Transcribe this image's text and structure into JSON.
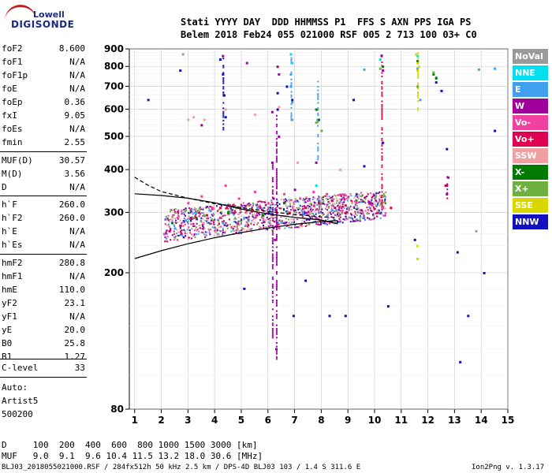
{
  "logo": {
    "line1": "Lowell",
    "line2": "DIGISONDE"
  },
  "header": {
    "line1": "Stati YYYY DAY  DDD HHMMSS P1  FFS S AXN PPS IGA PS",
    "line2": "Belem 2018 Feb24 055 021000 RSF 005 2 713 100 03+ C0"
  },
  "params": [
    {
      "name": "foF2",
      "value": "8.600"
    },
    {
      "name": "foF1",
      "value": "N/A"
    },
    {
      "name": "foF1p",
      "value": "N/A"
    },
    {
      "name": "foE",
      "value": "N/A"
    },
    {
      "name": "foEp",
      "value": "0.36"
    },
    {
      "name": "fxI",
      "value": "9.05"
    },
    {
      "name": "foEs",
      "value": "N/A"
    },
    {
      "name": "fmin",
      "value": "2.55"
    },
    {
      "name": "MUF(D)",
      "value": "30.57"
    },
    {
      "name": "M(D)",
      "value": "3.56"
    },
    {
      "name": "D",
      "value": "N/A"
    },
    {
      "name": "h`F",
      "value": "260.0"
    },
    {
      "name": "h`F2",
      "value": "260.0"
    },
    {
      "name": "h`E",
      "value": "N/A"
    },
    {
      "name": "h`Es",
      "value": "N/A"
    },
    {
      "name": "hmF2",
      "value": "280.8"
    },
    {
      "name": "hmF1",
      "value": "N/A"
    },
    {
      "name": "hmE",
      "value": "110.0"
    },
    {
      "name": "yF2",
      "value": "23.1"
    },
    {
      "name": "yF1",
      "value": "N/A"
    },
    {
      "name": "yE",
      "value": "20.0"
    },
    {
      "name": "B0",
      "value": "25.8"
    },
    {
      "name": "B1",
      "value": "1.27"
    },
    {
      "name": "C-level",
      "value": "33"
    }
  ],
  "auto": {
    "l1": "Auto:",
    "l2": "Artist5",
    "l3": "500200"
  },
  "legend": [
    {
      "label": "NoVal",
      "color": "#9a9a9a"
    },
    {
      "label": "NNE",
      "color": "#00e0f0"
    },
    {
      "label": "E",
      "color": "#40a0f0"
    },
    {
      "label": "W",
      "color": "#a0009a"
    },
    {
      "label": "Vo-",
      "color": "#f040a0"
    },
    {
      "label": "Vo+",
      "color": "#e00050"
    },
    {
      "label": "SSW",
      "color": "#f0a0a0"
    },
    {
      "label": "X-",
      "color": "#007a00"
    },
    {
      "label": "X+",
      "color": "#70b040"
    },
    {
      "label": "SSE",
      "color": "#d8d800"
    },
    {
      "label": "NNW",
      "color": "#1010c0"
    }
  ],
  "footer": {
    "d_row": "D     100  200  400  600  800 1000 1500 3000 [km]",
    "muf_row": "MUF   9.0  9.1  9.6 10.4 11.5 13.2 18.0 30.6 [MHz]",
    "file": "BLJ03_2018055021000.RSF / 284fx512h 50 kHz 2.5 km / DPS-4D BLJ03 103 / 1.4 S 311.6 E",
    "version": "Ion2Png v. 1.3.17"
  },
  "chart_data": {
    "type": "scatter",
    "title": "",
    "xlabel": "",
    "ylabel": "",
    "xlim": [
      0.8,
      15
    ],
    "ylim": [
      80,
      900
    ],
    "x_ticks": [
      "1",
      "2",
      "3",
      "4",
      "5",
      "6",
      "7",
      "8",
      "9",
      "10",
      "11",
      "12",
      "13",
      "14",
      "15"
    ],
    "y_ticks": [
      "80",
      "200",
      "300",
      "400",
      "500",
      "600",
      "700",
      "800",
      "900"
    ],
    "y_scale": "log",
    "grid": "on",
    "legend_position": "right",
    "series": [
      {
        "name": "NoVal",
        "color": "#9a9a9a",
        "points": [
          [
            2.8,
            870
          ],
          [
            4.1,
            260
          ],
          [
            6.9,
            560
          ],
          [
            9.4,
            300
          ],
          [
            12.3,
            745
          ],
          [
            13.8,
            265
          ]
        ]
      },
      {
        "name": "NNE",
        "color": "#00e0f0",
        "points": [
          [
            6.85,
            870
          ],
          [
            6.9,
            820
          ],
          [
            7.8,
            360
          ],
          [
            10.2,
            840
          ],
          [
            11.6,
            860
          ]
        ]
      },
      {
        "name": "E",
        "color": "#40a0f0",
        "points": [
          [
            2.5,
            270
          ],
          [
            2.9,
            285
          ],
          [
            3.3,
            300
          ],
          [
            3.8,
            305
          ],
          [
            4.3,
            280
          ],
          [
            4.6,
            300
          ],
          [
            5.1,
            290
          ],
          [
            5.6,
            310
          ],
          [
            6.1,
            300
          ],
          [
            6.85,
            760
          ],
          [
            6.85,
            700
          ],
          [
            6.9,
            630
          ],
          [
            7.3,
            300
          ],
          [
            7.85,
            560
          ],
          [
            7.9,
            300
          ],
          [
            8.4,
            305
          ],
          [
            9.1,
            290
          ],
          [
            9.6,
            785
          ],
          [
            11.6,
            790
          ],
          [
            11.7,
            640
          ],
          [
            13.9,
            785
          ],
          [
            14.5,
            790
          ]
        ]
      },
      {
        "name": "W",
        "color": "#a0009a",
        "points": [
          [
            3.5,
            540
          ],
          [
            4.3,
            860
          ],
          [
            5.2,
            820
          ],
          [
            6.15,
            590
          ],
          [
            6.15,
            420
          ],
          [
            6.2,
            330
          ],
          [
            6.25,
            250
          ],
          [
            6.3,
            120
          ],
          [
            6.4,
            760
          ],
          [
            6.35,
            800
          ],
          [
            6.4,
            500
          ],
          [
            7.0,
            350
          ],
          [
            7.8,
            420
          ],
          [
            8.5,
            310
          ],
          [
            9.8,
            320
          ],
          [
            10.25,
            860
          ],
          [
            10.3,
            780
          ],
          [
            11.6,
            830
          ],
          [
            12.7,
            340
          ],
          [
            12.7,
            360
          ],
          [
            12.75,
            380
          ]
        ]
      },
      {
        "name": "Vo-",
        "color": "#f040a0",
        "points": [
          [
            2.1,
            260
          ],
          [
            2.6,
            290
          ],
          [
            3.0,
            320
          ],
          [
            3.5,
            335
          ],
          [
            3.9,
            310
          ],
          [
            4.4,
            360
          ],
          [
            4.9,
            330
          ],
          [
            5.5,
            345
          ],
          [
            6.0,
            320
          ],
          [
            6.6,
            340
          ],
          [
            7.2,
            330
          ],
          [
            7.7,
            345
          ],
          [
            8.2,
            340
          ],
          [
            8.8,
            330
          ],
          [
            9.3,
            320
          ],
          [
            9.9,
            315
          ],
          [
            10.3,
            310
          ]
        ]
      },
      {
        "name": "Vo+",
        "color": "#e00050",
        "points": [
          [
            2.3,
            265
          ],
          [
            2.7,
            275
          ],
          [
            3.1,
            290
          ],
          [
            3.4,
            300
          ],
          [
            3.7,
            295
          ],
          [
            4.2,
            310
          ],
          [
            4.7,
            300
          ],
          [
            5.2,
            305
          ],
          [
            5.7,
            310
          ],
          [
            6.3,
            305
          ],
          [
            6.8,
            300
          ],
          [
            7.4,
            310
          ],
          [
            7.9,
            320
          ],
          [
            8.4,
            325
          ],
          [
            8.9,
            315
          ],
          [
            9.5,
            305
          ],
          [
            10.1,
            300
          ],
          [
            10.6,
            310
          ],
          [
            12.65,
            360
          ]
        ]
      },
      {
        "name": "SSW",
        "color": "#f0a0a0",
        "points": [
          [
            3.0,
            560
          ],
          [
            3.2,
            570
          ],
          [
            3.6,
            560
          ],
          [
            4.4,
            600
          ],
          [
            5.5,
            580
          ],
          [
            6.4,
            610
          ],
          [
            7.1,
            420
          ],
          [
            8.7,
            400
          ]
        ]
      },
      {
        "name": "X-",
        "color": "#007a00",
        "points": [
          [
            2.4,
            280
          ],
          [
            3.3,
            290
          ],
          [
            4.5,
            300
          ],
          [
            5.8,
            295
          ],
          [
            6.6,
            320
          ],
          [
            7.8,
            600
          ],
          [
            7.9,
            560
          ],
          [
            10.3,
            800
          ],
          [
            11.6,
            830
          ],
          [
            12.2,
            760
          ],
          [
            12.3,
            740
          ]
        ]
      },
      {
        "name": "X+",
        "color": "#70b040",
        "points": [
          [
            2.9,
            305
          ],
          [
            3.6,
            295
          ],
          [
            4.8,
            310
          ],
          [
            6.7,
            300
          ],
          [
            7.8,
            550
          ],
          [
            8.0,
            520
          ],
          [
            10.2,
            790
          ],
          [
            11.6,
            700
          ],
          [
            12.2,
            770
          ]
        ]
      },
      {
        "name": "SSE",
        "color": "#d8d800",
        "points": [
          [
            11.55,
            870
          ],
          [
            11.6,
            820
          ],
          [
            11.6,
            780
          ],
          [
            11.6,
            240
          ],
          [
            11.6,
            220
          ],
          [
            11.65,
            800
          ]
        ]
      },
      {
        "name": "NNW",
        "color": "#1010c0",
        "points": [
          [
            1.5,
            640
          ],
          [
            2.7,
            780
          ],
          [
            4.2,
            840
          ],
          [
            4.3,
            760
          ],
          [
            4.35,
            660
          ],
          [
            4.4,
            570
          ],
          [
            5.1,
            180
          ],
          [
            6.35,
            670
          ],
          [
            6.35,
            600
          ],
          [
            6.7,
            700
          ],
          [
            6.9,
            640
          ],
          [
            6.95,
            150
          ],
          [
            7.4,
            190
          ],
          [
            8.3,
            150
          ],
          [
            8.9,
            150
          ],
          [
            9.2,
            640
          ],
          [
            9.6,
            410
          ],
          [
            10.3,
            480
          ],
          [
            10.5,
            160
          ],
          [
            11.5,
            250
          ],
          [
            12.3,
            720
          ],
          [
            12.5,
            680
          ],
          [
            12.7,
            460
          ],
          [
            13.1,
            230
          ],
          [
            13.2,
            110
          ],
          [
            13.5,
            150
          ],
          [
            14.1,
            200
          ],
          [
            14.5,
            520
          ]
        ]
      }
    ],
    "curves": [
      {
        "name": "profile-solid",
        "points": [
          [
            1.0,
            220
          ],
          [
            2,
            232
          ],
          [
            3,
            243
          ],
          [
            4,
            253
          ],
          [
            5,
            262
          ],
          [
            6,
            270
          ],
          [
            7,
            277
          ],
          [
            8,
            282
          ],
          [
            8.6,
            284
          ],
          [
            8.6,
            278
          ],
          [
            8.0,
            285
          ],
          [
            7.0,
            290
          ],
          [
            6.0,
            297
          ],
          [
            5.0,
            307
          ],
          [
            4.0,
            320
          ],
          [
            3.0,
            330
          ],
          [
            2.0,
            336
          ],
          [
            1.0,
            340
          ]
        ]
      },
      {
        "name": "profile-dashed",
        "points": [
          [
            1.0,
            380
          ],
          [
            1.5,
            360
          ],
          [
            2.0,
            345
          ],
          [
            3.0,
            330
          ],
          [
            4.0,
            318
          ],
          [
            5.0,
            310
          ],
          [
            6.0,
            302
          ],
          [
            7.0,
            296
          ],
          [
            8.0,
            291
          ],
          [
            8.6,
            290
          ]
        ]
      }
    ]
  }
}
